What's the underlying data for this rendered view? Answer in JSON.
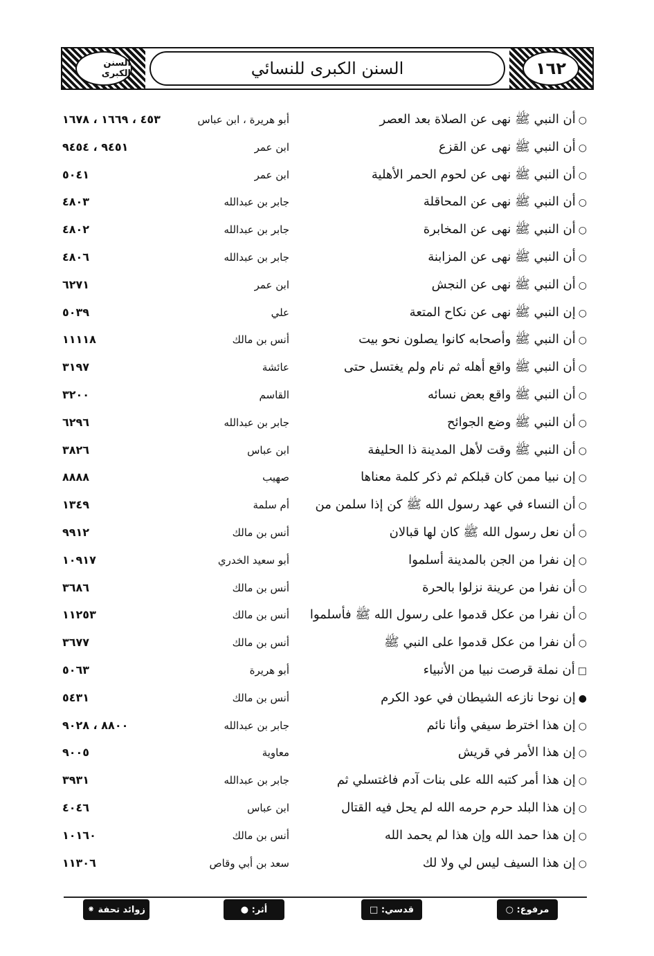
{
  "header": {
    "page_number": "١٦٢",
    "book_title": "السنن الكبرى للنسائي",
    "emblem": "السنن الكبرى"
  },
  "rows": [
    {
      "marker": "○",
      "text": "أن النبي ﷺ نهى عن الصلاة بعد العصر",
      "narrator": "أبو هريرة ، ابن عباس",
      "numbers": "٤٥٣ ، ١٦٦٩ ، ١٦٧٨"
    },
    {
      "marker": "○",
      "text": "أن النبي ﷺ نهى عن القزع",
      "narrator": "ابن عمر",
      "numbers": "٩٤٥١ ، ٩٤٥٤"
    },
    {
      "marker": "○",
      "text": "أن النبي ﷺ نهى عن لحوم الحمر الأهلية",
      "narrator": "ابن عمر",
      "numbers": "٥٠٤١"
    },
    {
      "marker": "○",
      "text": "أن النبي ﷺ نهى عن المحاقلة",
      "narrator": "جابر بن عبدالله",
      "numbers": "٤٨٠٣"
    },
    {
      "marker": "○",
      "text": "أن النبي ﷺ نهى عن المخابرة",
      "narrator": "جابر بن عبدالله",
      "numbers": "٤٨٠٢"
    },
    {
      "marker": "○",
      "text": "أن النبي ﷺ نهى عن المزابنة",
      "narrator": "جابر بن عبدالله",
      "numbers": "٤٨٠٦"
    },
    {
      "marker": "○",
      "text": "أن النبي ﷺ نهى عن النجش",
      "narrator": "ابن عمر",
      "numbers": "٦٢٧١"
    },
    {
      "marker": "○",
      "text": "إن النبي ﷺ نهى عن نكاح المتعة",
      "narrator": "علي",
      "numbers": "٥٠٣٩"
    },
    {
      "marker": "○",
      "text": "أن النبي ﷺ وأصحابه كانوا يصلون نحو بيت",
      "narrator": "أنس بن مالك",
      "numbers": "١١١١٨"
    },
    {
      "marker": "○",
      "text": "أن النبي ﷺ واقع أهله ثم نام ولم يغتسل حتى",
      "narrator": "عائشة",
      "numbers": "٣١٩٧"
    },
    {
      "marker": "○",
      "text": "أن النبي ﷺ واقع بعض نسائه",
      "narrator": "القاسم",
      "numbers": "٣٢٠٠"
    },
    {
      "marker": "○",
      "text": "أن النبي ﷺ وضع الجوائح",
      "narrator": "جابر بن عبدالله",
      "numbers": "٦٢٩٦"
    },
    {
      "marker": "○",
      "text": "أن النبي ﷺ وقت لأهل المدينة ذا الحليفة",
      "narrator": "ابن عباس",
      "numbers": "٣٨٢٦"
    },
    {
      "marker": "○",
      "text": "إن نبيا ممن كان قبلكم ثم ذكر كلمة معناها",
      "narrator": "صهيب",
      "numbers": "٨٨٨٨"
    },
    {
      "marker": "○",
      "text": "أن النساء في عهد رسول الله ﷺ كن إذا سلمن من",
      "narrator": "أم سلمة",
      "numbers": "١٣٤٩"
    },
    {
      "marker": "○",
      "text": "أن نعل رسول الله ﷺ كان لها قبالان",
      "narrator": "أنس بن مالك",
      "numbers": "٩٩١٢"
    },
    {
      "marker": "○",
      "text": "إن نفرا من الجن بالمدينة أسلموا",
      "narrator": "أبو سعيد الخدري",
      "numbers": "١٠٩١٧"
    },
    {
      "marker": "○",
      "text": "أن نفرا من عرينة نزلوا بالحرة",
      "narrator": "أنس بن مالك",
      "numbers": "٣٦٨٦"
    },
    {
      "marker": "○",
      "text": "أن نفرا من عكل قدموا على رسول الله ﷺ فأسلموا",
      "narrator": "أنس بن مالك",
      "numbers": "١١٢٥٣"
    },
    {
      "marker": "○",
      "text": "أن نفرا من عكل قدموا على النبي ﷺ",
      "narrator": "أنس بن مالك",
      "numbers": "٣٦٧٧"
    },
    {
      "marker": "□",
      "text": "أن نملة قرصت نبيا من الأنبياء",
      "narrator": "أبو هريرة",
      "numbers": "٥٠٦٣"
    },
    {
      "marker": "●",
      "text": "إن نوحا نازعه الشيطان في عود الكرم",
      "narrator": "أنس بن مالك",
      "numbers": "٥٤٣١"
    },
    {
      "marker": "○",
      "text": "إن هذا اخترط سيفي وأنا نائم",
      "narrator": "جابر بن عبدالله",
      "numbers": "٨٨٠٠ ، ٩٠٢٨"
    },
    {
      "marker": "○",
      "text": "إن هذا الأمر في قريش",
      "narrator": "معاوية",
      "numbers": "٩٠٠٥"
    },
    {
      "marker": "○",
      "text": "إن هذا أمر كتبه الله على بنات آدم فاغتسلي ثم",
      "narrator": "جابر بن عبدالله",
      "numbers": "٣٩٣١"
    },
    {
      "marker": "○",
      "text": "إن هذا البلد حرم حرمه الله لم يحل فيه القتال",
      "narrator": "ابن عباس",
      "numbers": "٤٠٤٦"
    },
    {
      "marker": "○",
      "text": "إن هذا حمد الله وإن هذا لم يحمد الله",
      "narrator": "أنس بن مالك",
      "numbers": "١٠١٦٠"
    },
    {
      "marker": "○",
      "text": "إن هذا السيف ليس لي ولا لك",
      "narrator": "سعد بن أبي وقاص",
      "numbers": "١١٣٠٦"
    }
  ],
  "legend": {
    "marfu": "مرفوع: ○",
    "qudsi": "قدسي: □",
    "athar": "أثر: ●",
    "zawaid": "زوائد تحفة ⁕"
  }
}
